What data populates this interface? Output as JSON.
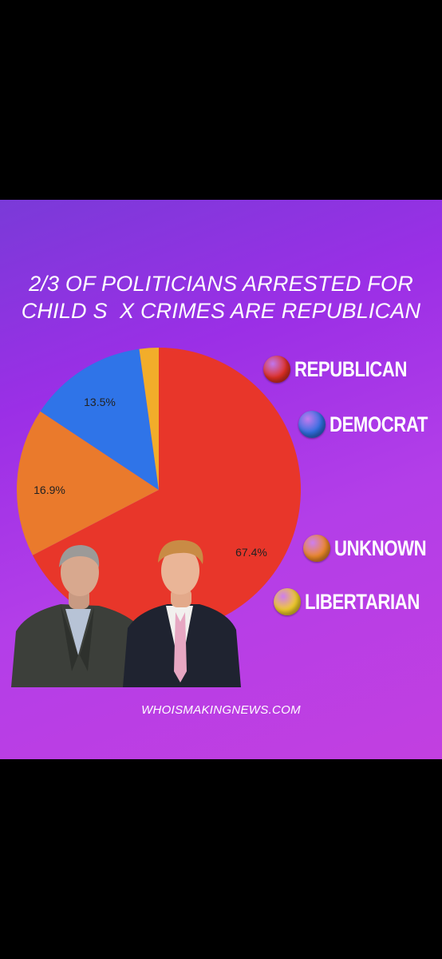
{
  "poster": {
    "title_line1": "2/3 OF POLITICIANS ARRESTED FOR",
    "title_line2": "CHILD S  X CRIMES ARE REPUBLICAN",
    "footer": "WHOISMAKINGNEWS.COM"
  },
  "legend": [
    {
      "label": "REPUBLICAN",
      "color": "#e03024"
    },
    {
      "label": "DEMOCRAT",
      "color": "#2f6fe0"
    },
    {
      "label": "UNKNOWN",
      "color": "#ee8a28"
    },
    {
      "label": "LIBERTARIAN",
      "color": "#f2cf2a"
    }
  ],
  "chart_data": {
    "type": "pie",
    "labels": [
      "Republican",
      "Democrat",
      "Unknown",
      "Libertarian"
    ],
    "values": [
      67.4,
      13.5,
      16.9,
      2.2
    ],
    "data_labels": [
      "67.4%",
      "13.5%",
      "16.9%",
      ""
    ],
    "colors": [
      "#e8362a",
      "#2f74e8",
      "#ea7a2c",
      "#f2ad2a"
    ],
    "legend_position": "right"
  }
}
